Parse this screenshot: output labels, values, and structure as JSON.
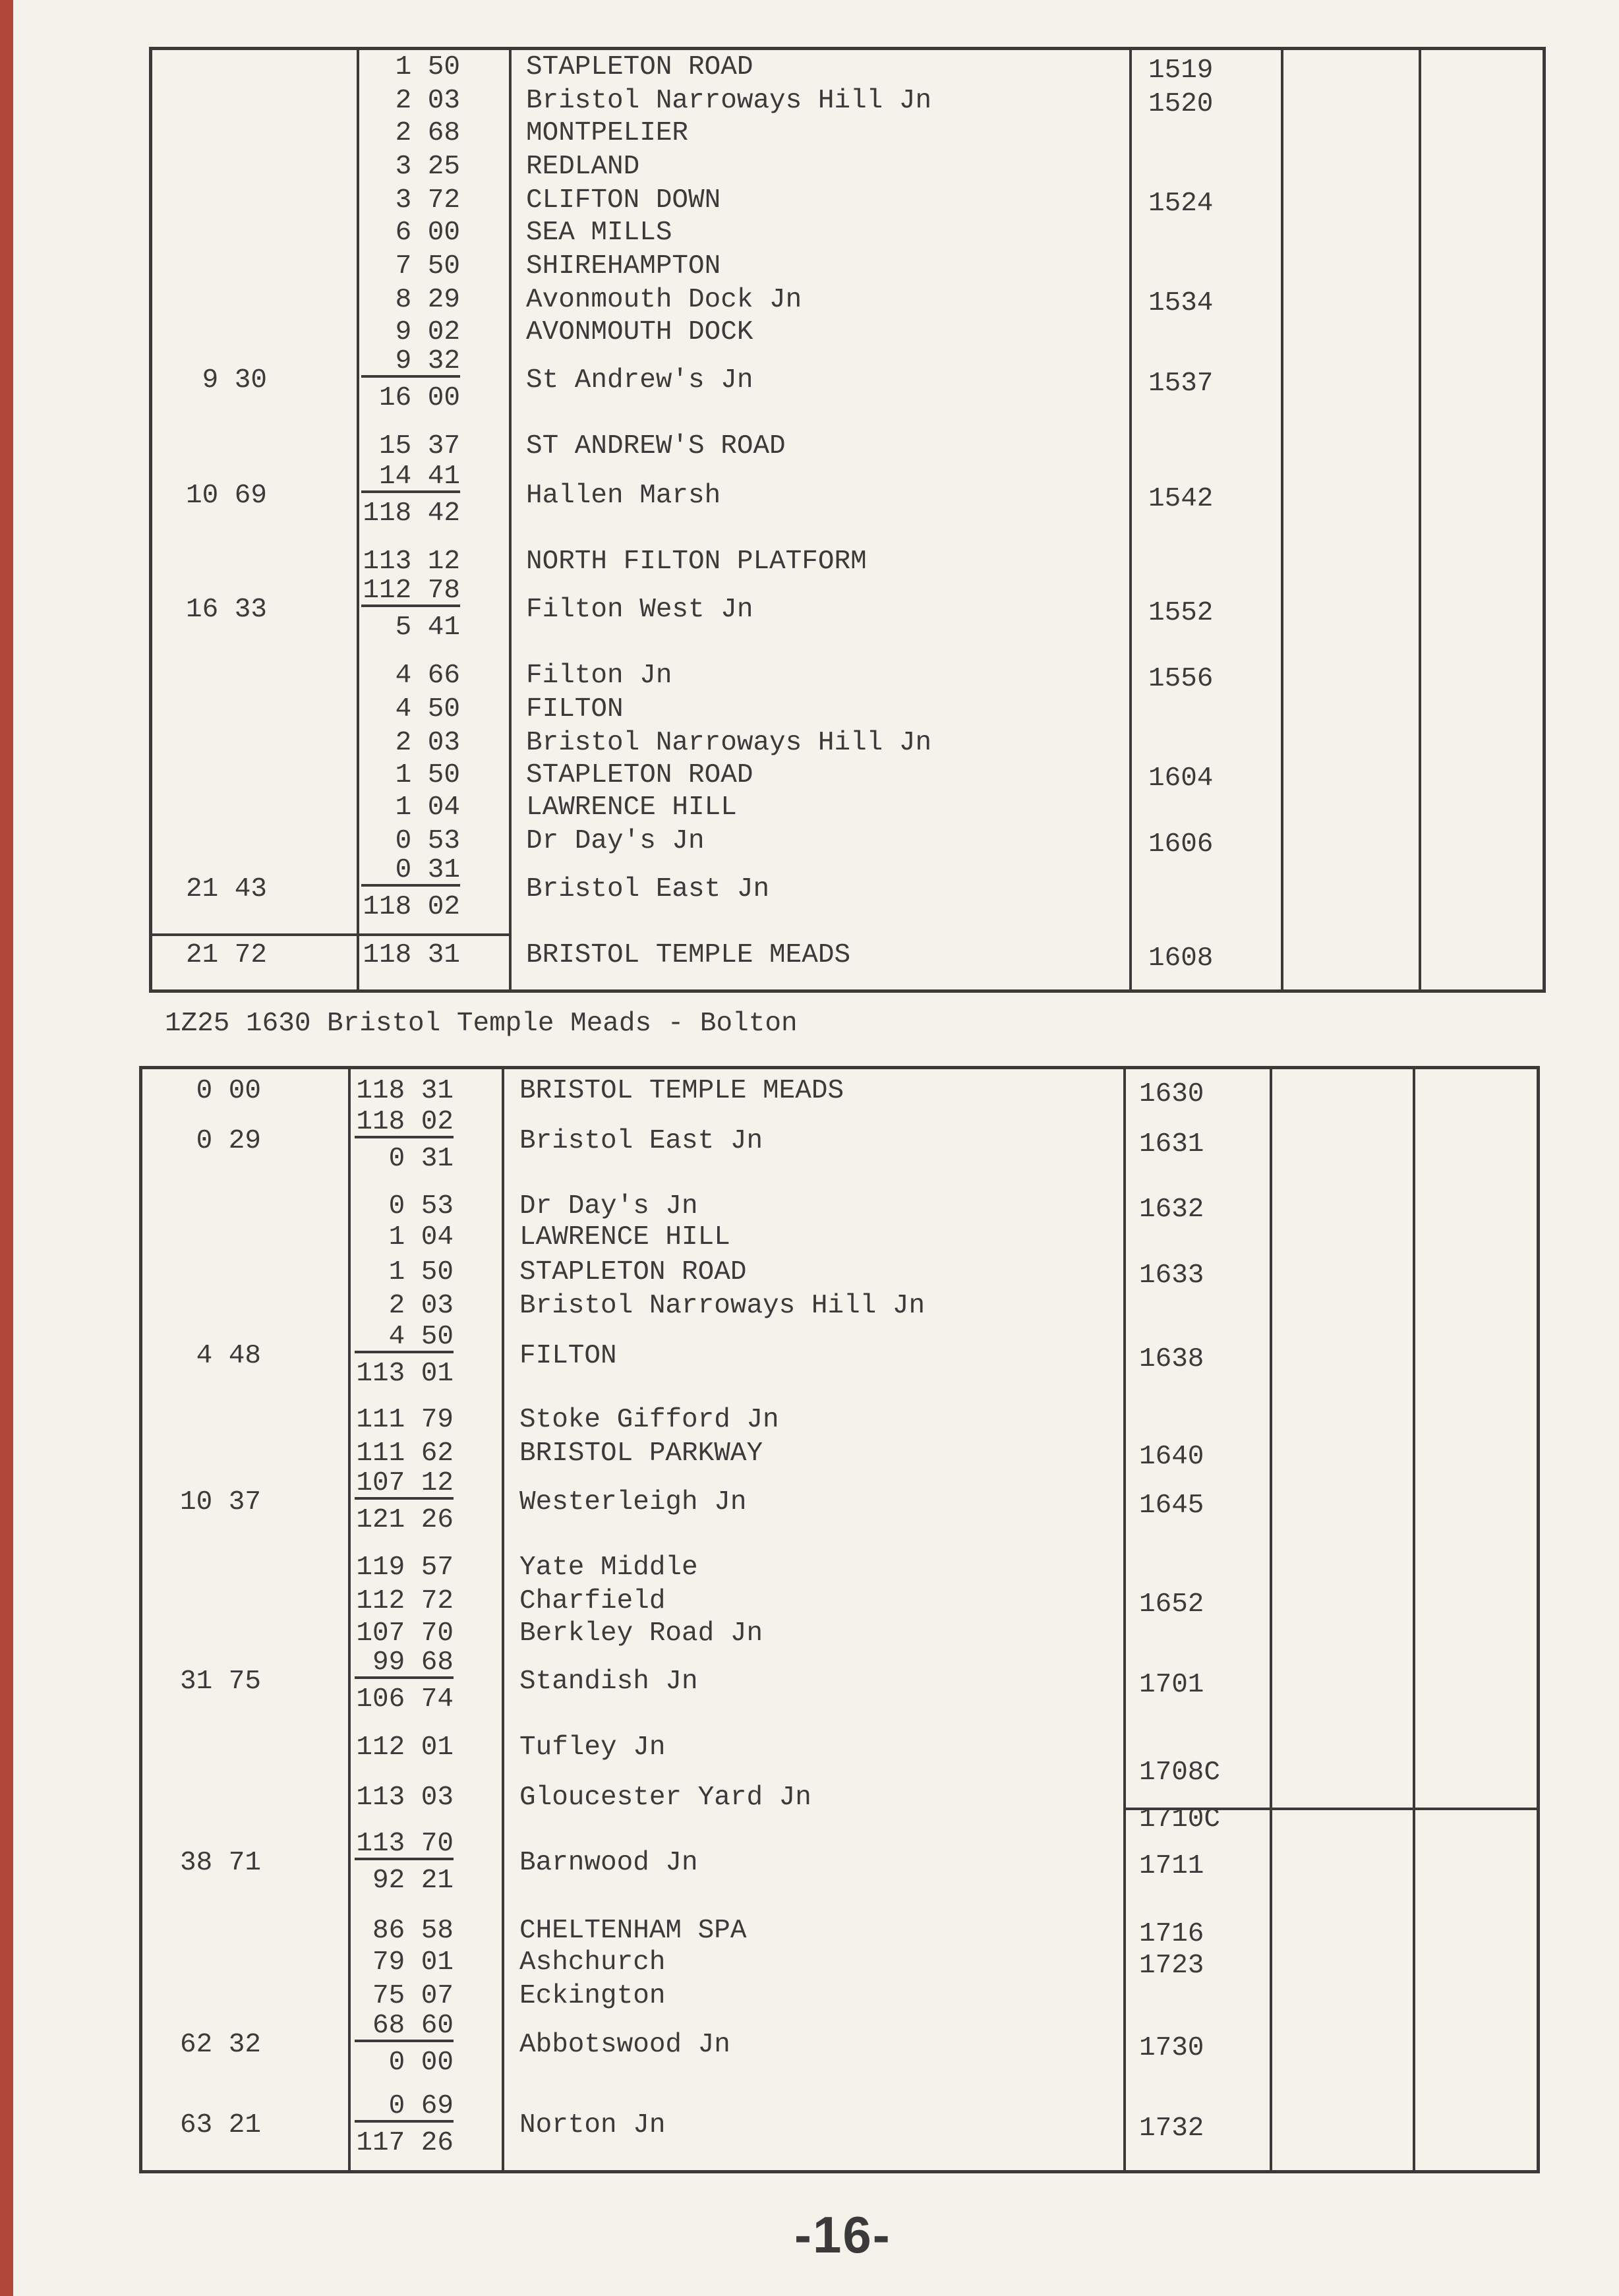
{
  "tables": [
    {
      "rows": [
        {
          "cum": "",
          "miles": [
            "1 50"
          ],
          "location": "STAPLETON ROAD",
          "time": "1519"
        },
        {
          "cum": "",
          "miles": [
            "2 03"
          ],
          "location": "Bristol Narroways Hill Jn",
          "time": "1520"
        },
        {
          "cum": "",
          "miles": [
            "2 68"
          ],
          "location": "MONTPELIER",
          "time": ""
        },
        {
          "cum": "",
          "miles": [
            "3 25"
          ],
          "location": "REDLAND",
          "time": ""
        },
        {
          "cum": "",
          "miles": [
            "3 72"
          ],
          "location": "CLIFTON DOWN",
          "time": "1524"
        },
        {
          "cum": "",
          "miles": [
            "6 00"
          ],
          "location": "SEA MILLS",
          "time": ""
        },
        {
          "cum": "",
          "miles": [
            "7 50"
          ],
          "location": "SHIREHAMPTON",
          "time": ""
        },
        {
          "cum": "",
          "miles": [
            "8 29"
          ],
          "location": "Avonmouth Dock Jn",
          "time": "1534"
        },
        {
          "cum": "",
          "miles": [
            "9 02"
          ],
          "location": "AVONMOUTH DOCK",
          "time": ""
        },
        {
          "cum": "9 30",
          "miles": [
            "9 32",
            "16 00"
          ],
          "location": "St Andrew's Jn",
          "time": "1537"
        },
        {
          "cum": "",
          "miles": [
            "15 37"
          ],
          "location": "ST ANDREW'S ROAD",
          "time": ""
        },
        {
          "cum": "10 69",
          "miles": [
            "14 41",
            "118 42"
          ],
          "location": "Hallen Marsh",
          "time": "1542"
        },
        {
          "cum": "",
          "miles": [
            "113 12"
          ],
          "location": "NORTH FILTON PLATFORM",
          "time": ""
        },
        {
          "cum": "16 33",
          "miles": [
            "112 78",
            "5 41"
          ],
          "location": "Filton West Jn",
          "time": "1552"
        },
        {
          "cum": "",
          "miles": [
            "4 66"
          ],
          "location": "Filton Jn",
          "time": "1556"
        },
        {
          "cum": "",
          "miles": [
            "4 50"
          ],
          "location": "FILTON",
          "time": ""
        },
        {
          "cum": "",
          "miles": [
            "2 03"
          ],
          "location": "Bristol Narroways Hill Jn",
          "time": ""
        },
        {
          "cum": "",
          "miles": [
            "1 50"
          ],
          "location": "STAPLETON ROAD",
          "time": "1604"
        },
        {
          "cum": "",
          "miles": [
            "1 04"
          ],
          "location": "LAWRENCE HILL",
          "time": ""
        },
        {
          "cum": "",
          "miles": [
            "0 53"
          ],
          "location": "Dr Day's Jn",
          "time": "1606"
        },
        {
          "cum": "21 43",
          "miles": [
            "0 31",
            "118 02"
          ],
          "location": "Bristol East Jn",
          "time": ""
        },
        {
          "cum": "21 72",
          "miles": [
            "118 31"
          ],
          "location": "BRISTOL TEMPLE MEADS",
          "time": "1608"
        }
      ]
    },
    {
      "heading": "1Z25 1630 Bristol Temple Meads - Bolton",
      "rows": [
        {
          "cum": "0 00",
          "miles": [
            "118 31"
          ],
          "location": "BRISTOL TEMPLE MEADS",
          "time": "1630"
        },
        {
          "cum": "0 29",
          "miles": [
            "118 02",
            "0 31"
          ],
          "location": "Bristol East Jn",
          "time": "1631"
        },
        {
          "cum": "",
          "miles": [
            "0 53"
          ],
          "location": "Dr Day's Jn",
          "time": "1632"
        },
        {
          "cum": "",
          "miles": [
            "1 04"
          ],
          "location": "LAWRENCE HILL",
          "time": ""
        },
        {
          "cum": "",
          "miles": [
            "1 50"
          ],
          "location": "STAPLETON ROAD",
          "time": "1633"
        },
        {
          "cum": "",
          "miles": [
            "2 03"
          ],
          "location": "Bristol Narroways Hill Jn",
          "time": ""
        },
        {
          "cum": "4 48",
          "miles": [
            "4 50",
            "113 01"
          ],
          "location": "FILTON",
          "time": "1638"
        },
        {
          "cum": "",
          "miles": [
            "111 79"
          ],
          "location": "Stoke Gifford Jn",
          "time": ""
        },
        {
          "cum": "",
          "miles": [
            "111 62"
          ],
          "location": "BRISTOL PARKWAY",
          "time": "1640"
        },
        {
          "cum": "10 37",
          "miles": [
            "107 12",
            "121 26"
          ],
          "location": "Westerleigh Jn",
          "time": "1645"
        },
        {
          "cum": "",
          "miles": [
            "119 57"
          ],
          "location": "Yate Middle",
          "time": ""
        },
        {
          "cum": "",
          "miles": [
            "112 72"
          ],
          "location": "Charfield",
          "time": "1652"
        },
        {
          "cum": "",
          "miles": [
            "107 70"
          ],
          "location": "Berkley Road Jn",
          "time": ""
        },
        {
          "cum": "31 75",
          "miles": [
            "99 68",
            "106 74"
          ],
          "location": "Standish Jn",
          "time": "1701"
        },
        {
          "cum": "",
          "miles": [
            "112 01"
          ],
          "location": "Tufley Jn",
          "time": ""
        },
        {
          "cum": "",
          "miles": [
            "113 03"
          ],
          "location": "Gloucester Yard Jn",
          "time": "1708C",
          "time2": "1710C"
        },
        {
          "cum": "38 71",
          "miles": [
            "113 70",
            "92 21"
          ],
          "location": "Barnwood Jn",
          "time": "1711"
        },
        {
          "cum": "",
          "miles": [
            "86 58"
          ],
          "location": "CHELTENHAM SPA",
          "time": "1716"
        },
        {
          "cum": "",
          "miles": [
            "79 01"
          ],
          "location": "Ashchurch",
          "time": "1723"
        },
        {
          "cum": "",
          "miles": [
            "75 07"
          ],
          "location": "Eckington",
          "time": ""
        },
        {
          "cum": "62 32",
          "miles": [
            "68 60",
            "0 00"
          ],
          "location": "Abbotswood Jn",
          "time": "1730"
        },
        {
          "cum": "63 21",
          "miles": [
            "0 69",
            "117 26"
          ],
          "location": "Norton Jn",
          "time": "1732"
        }
      ]
    }
  ],
  "page_number": "-16-"
}
